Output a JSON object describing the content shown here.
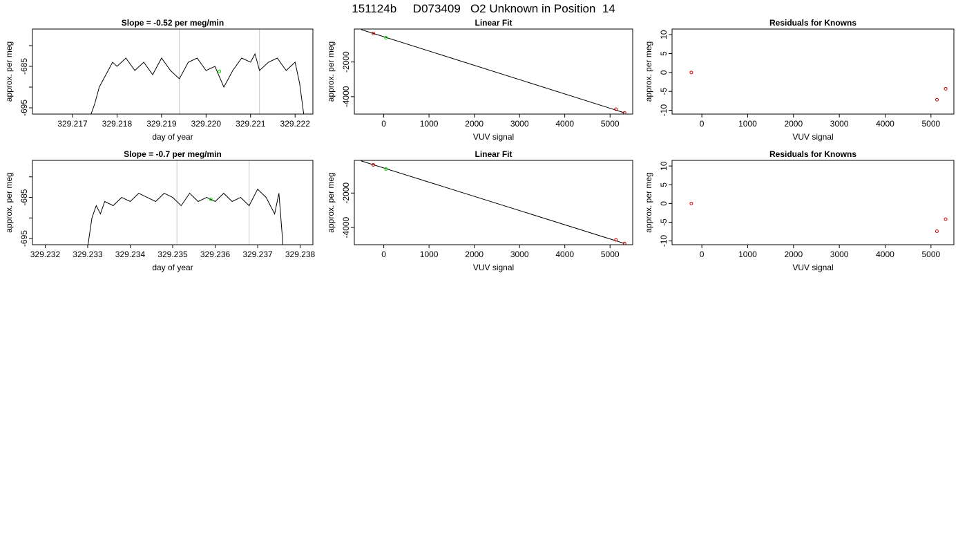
{
  "page": {
    "title": "151124b     D073409   O2 Unknown in Position  14"
  },
  "chart_data": [
    {
      "id": "ts1",
      "type": "line",
      "title": "Slope =  -0.52  per meg/min",
      "xlabel": "day of year",
      "ylabel": "approx. per meg",
      "xlim": [
        329.2161,
        329.2224
      ],
      "ylim": [
        -696.5,
        -676
      ],
      "xticks": [
        329.217,
        329.218,
        329.219,
        329.22,
        329.221,
        329.222
      ],
      "xtick_labels": [
        "329.217",
        "329.218",
        "329.219",
        "329.220",
        "329.221",
        "329.222"
      ],
      "yticks": [
        -695,
        -690,
        -685,
        -680
      ],
      "ytick_labels": [
        "-695",
        "",
        "-685",
        ""
      ],
      "vlines": [
        329.2194,
        329.2212
      ],
      "series": [
        {
          "color": "#000000",
          "x": [
            329.2174,
            329.2175,
            329.2176,
            329.2177,
            329.2178,
            329.2179,
            329.218,
            329.2182,
            329.2184,
            329.2186,
            329.2188,
            329.219,
            329.2192,
            329.2194,
            329.2196,
            329.2198,
            329.22,
            329.2202,
            329.2204,
            329.2206,
            329.2208,
            329.221,
            329.2211,
            329.2212,
            329.2214,
            329.2216,
            329.2218,
            329.222,
            329.2221,
            329.2222
          ],
          "y": [
            -697,
            -694,
            -690,
            -688,
            -686,
            -684,
            -685,
            -683,
            -686,
            -684,
            -687,
            -683,
            -686,
            -688,
            -684,
            -683,
            -686,
            -685,
            -690,
            -686,
            -683,
            -684,
            -682,
            -686,
            -684,
            -683,
            -686,
            -684,
            -689,
            -697
          ]
        }
      ],
      "points": [
        {
          "x": 329.2203,
          "y": -686.2,
          "color": "#00dd00"
        }
      ]
    },
    {
      "id": "lf1",
      "type": "scatter",
      "title": "Linear Fit",
      "xlabel": "VUV signal",
      "ylabel": "approx. per meg",
      "xlim": [
        -650,
        5500
      ],
      "ylim": [
        -5000,
        -100
      ],
      "xticks": [
        0,
        1000,
        2000,
        3000,
        4000,
        5000
      ],
      "xtick_labels": [
        "0",
        "1000",
        "2000",
        "3000",
        "4000",
        "5000"
      ],
      "yticks": [
        -4000,
        -2000
      ],
      "ytick_labels": [
        "-4000",
        "-2000"
      ],
      "line": {
        "x": [
          -500,
          5320
        ],
        "y": [
          -130,
          -4930
        ]
      },
      "points": [
        {
          "x": -230,
          "y": -360,
          "color": "#cc0000"
        },
        {
          "x": 50,
          "y": -600,
          "color": "#00dd00"
        },
        {
          "x": 5130,
          "y": -4720,
          "color": "#cc0000"
        },
        {
          "x": 5320,
          "y": -4930,
          "color": "#cc0000"
        }
      ]
    },
    {
      "id": "res1",
      "type": "scatter",
      "title": "Residuals for Knowns",
      "xlabel": "VUV signal",
      "ylabel": "approx. per meg",
      "xlim": [
        -650,
        5500
      ],
      "ylim": [
        -11,
        11.5
      ],
      "xticks": [
        0,
        1000,
        2000,
        3000,
        4000,
        5000
      ],
      "xtick_labels": [
        "0",
        "1000",
        "2000",
        "3000",
        "4000",
        "5000"
      ],
      "yticks": [
        -10,
        -5,
        0,
        5,
        10
      ],
      "ytick_labels": [
        "-10",
        "-5",
        "0",
        "5",
        "10"
      ],
      "points": [
        {
          "x": -230,
          "y": 0,
          "color": "#cc0000"
        },
        {
          "x": 5130,
          "y": -7.2,
          "color": "#cc0000"
        },
        {
          "x": 5320,
          "y": -4.3,
          "color": "#cc0000"
        }
      ]
    },
    {
      "id": "ts2",
      "type": "line",
      "title": "Slope =  -0.7  per meg/min",
      "xlabel": "day of year",
      "ylabel": "approx. per meg",
      "xlim": [
        329.2317,
        329.2383
      ],
      "ylim": [
        -696.5,
        -676
      ],
      "xticks": [
        329.232,
        329.233,
        329.234,
        329.235,
        329.236,
        329.237,
        329.238
      ],
      "xtick_labels": [
        "329.232",
        "329.233",
        "329.234",
        "329.235",
        "329.236",
        "329.237",
        "329.238"
      ],
      "yticks": [
        -695,
        -690,
        -685,
        -680
      ],
      "ytick_labels": [
        "-695",
        "",
        "-685",
        ""
      ],
      "vlines": [
        329.2351,
        329.2368
      ],
      "series": [
        {
          "color": "#000000",
          "x": [
            329.233,
            329.2331,
            329.2332,
            329.2333,
            329.2334,
            329.2336,
            329.2338,
            329.234,
            329.2342,
            329.2344,
            329.2346,
            329.2348,
            329.235,
            329.2352,
            329.2354,
            329.2356,
            329.2358,
            329.236,
            329.2362,
            329.2364,
            329.2366,
            329.2368,
            329.237,
            329.2372,
            329.2374,
            329.2375,
            329.2376
          ],
          "y": [
            -697,
            -690,
            -687,
            -689,
            -686,
            -687,
            -685,
            -686,
            -684,
            -685,
            -686,
            -684,
            -685,
            -687,
            -684,
            -686,
            -685,
            -686,
            -684,
            -686,
            -685,
            -687,
            -683,
            -685,
            -689,
            -684,
            -697
          ]
        }
      ],
      "points": [
        {
          "x": 329.2359,
          "y": -685.5,
          "color": "#00dd00"
        }
      ]
    },
    {
      "id": "lf2",
      "type": "scatter",
      "title": "Linear Fit",
      "xlabel": "VUV signal",
      "ylabel": "approx. per meg",
      "xlim": [
        -650,
        5500
      ],
      "ylim": [
        -5000,
        -100
      ],
      "xticks": [
        0,
        1000,
        2000,
        3000,
        4000,
        5000
      ],
      "xtick_labels": [
        "0",
        "1000",
        "2000",
        "3000",
        "4000",
        "5000"
      ],
      "yticks": [
        -4000,
        -2000
      ],
      "ytick_labels": [
        "-4000",
        "-2000"
      ],
      "line": {
        "x": [
          -500,
          5320
        ],
        "y": [
          -130,
          -4930
        ]
      },
      "points": [
        {
          "x": -230,
          "y": -360,
          "color": "#cc0000"
        },
        {
          "x": 50,
          "y": -600,
          "color": "#00dd00"
        },
        {
          "x": 5130,
          "y": -4720,
          "color": "#cc0000"
        },
        {
          "x": 5320,
          "y": -4930,
          "color": "#cc0000"
        }
      ]
    },
    {
      "id": "res2",
      "type": "scatter",
      "title": "Residuals for Knowns",
      "xlabel": "VUV signal",
      "ylabel": "approx. per meg",
      "xlim": [
        -650,
        5500
      ],
      "ylim": [
        -11,
        11.5
      ],
      "xticks": [
        0,
        1000,
        2000,
        3000,
        4000,
        5000
      ],
      "xtick_labels": [
        "0",
        "1000",
        "2000",
        "3000",
        "4000",
        "5000"
      ],
      "yticks": [
        -10,
        -5,
        0,
        5,
        10
      ],
      "ytick_labels": [
        "-10",
        "-5",
        "0",
        "5",
        "10"
      ],
      "points": [
        {
          "x": -230,
          "y": 0,
          "color": "#cc0000"
        },
        {
          "x": 5130,
          "y": -7.4,
          "color": "#cc0000"
        },
        {
          "x": 5320,
          "y": -4.2,
          "color": "#cc0000"
        }
      ]
    }
  ]
}
